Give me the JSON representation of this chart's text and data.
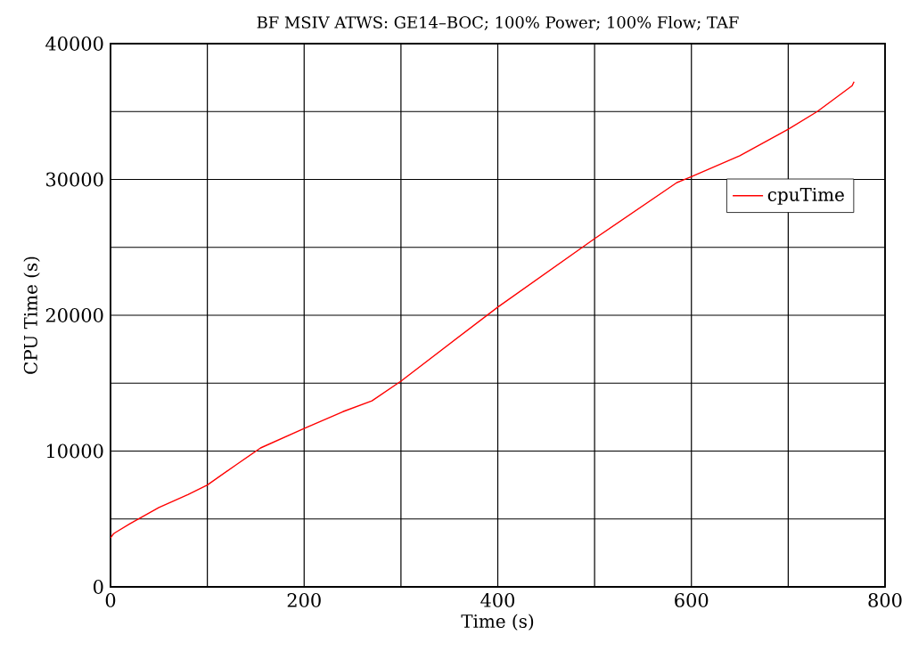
{
  "chart_data": {
    "type": "line",
    "title": "BF MSIV ATWS: GE14–BOC; 100% Power; 100% Flow; TAF",
    "xlabel": "Time (s)",
    "ylabel": "CPU Time (s)",
    "series": [
      {
        "name": "cpuTime",
        "color": "#ff0000",
        "x": [
          0,
          3,
          5,
          20,
          50,
          80,
          100,
          130,
          155,
          200,
          240,
          270,
          300,
          400,
          500,
          585,
          600,
          650,
          700,
          730,
          766,
          768
        ],
        "values": [
          3600,
          3900,
          4000,
          4650,
          5840,
          6800,
          7500,
          9000,
          10230,
          11670,
          12900,
          13700,
          15150,
          20600,
          25640,
          29770,
          30200,
          31740,
          33700,
          35000,
          36900,
          37200
        ]
      }
    ],
    "xlim": [
      0,
      800
    ],
    "ylim": [
      0,
      40000
    ],
    "xticks": [
      0,
      {
        "value": 100,
        "label": null
      },
      200,
      {
        "value": 300,
        "label": null
      },
      400,
      {
        "value": 500,
        "label": null
      },
      600,
      {
        "value": 700,
        "label": null
      },
      800
    ],
    "yticks": [
      0,
      {
        "value": 5000,
        "label": null
      },
      10000,
      {
        "value": 15000,
        "label": null
      },
      20000,
      {
        "value": 25000,
        "label": null
      },
      30000,
      {
        "value": 35000,
        "label": null
      },
      40000
    ],
    "grid": true,
    "legend": "top right",
    "marker": "none",
    "line_style": "solid"
  }
}
